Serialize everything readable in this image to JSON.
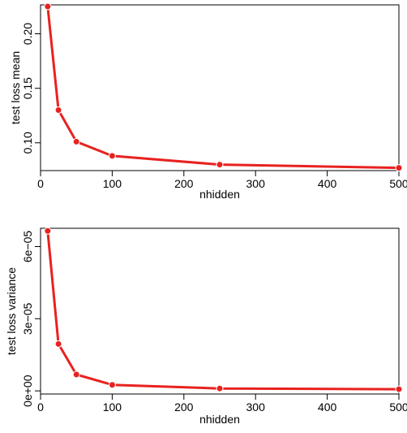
{
  "chart_data": [
    {
      "type": "line",
      "title": "",
      "xlabel": "nhidden",
      "ylabel": "test loss mean",
      "xlim": [
        0,
        500
      ],
      "ylim": [
        0.0745,
        0.2265
      ],
      "xticks": [
        0,
        100,
        200,
        300,
        400,
        500
      ],
      "xtick_labels": [
        "0",
        "100",
        "200",
        "300",
        "400",
        "500"
      ],
      "yticks": [
        0.1,
        0.15,
        0.2
      ],
      "ytick_labels": [
        "0.10",
        "0.15",
        "0.20"
      ],
      "grid": false,
      "color": "#e8221f",
      "series": [
        {
          "x": [
            10,
            25,
            50,
            100,
            250,
            500
          ],
          "y": [
            0.225,
            0.13,
            0.101,
            0.088,
            0.08,
            0.077
          ]
        }
      ]
    },
    {
      "type": "line",
      "title": "",
      "xlabel": "nhidden",
      "ylabel": "test loss variance",
      "xlim": [
        0,
        500
      ],
      "ylim": [
        -1.3e-06,
        6.76e-05
      ],
      "xticks": [
        0,
        100,
        200,
        300,
        400,
        500
      ],
      "xtick_labels": [
        "0",
        "100",
        "200",
        "300",
        "400",
        "500"
      ],
      "yticks": [
        0,
        3e-05,
        6e-05
      ],
      "ytick_labels": [
        "0e+00",
        "3e−05",
        "6e−05"
      ],
      "grid": false,
      "color": "#e8221f",
      "series": [
        {
          "x": [
            10,
            25,
            50,
            100,
            250,
            500
          ],
          "y": [
            6.65e-05,
            1.95e-05,
            6.8e-06,
            2.5e-06,
            1e-06,
            7e-07
          ]
        }
      ]
    }
  ]
}
